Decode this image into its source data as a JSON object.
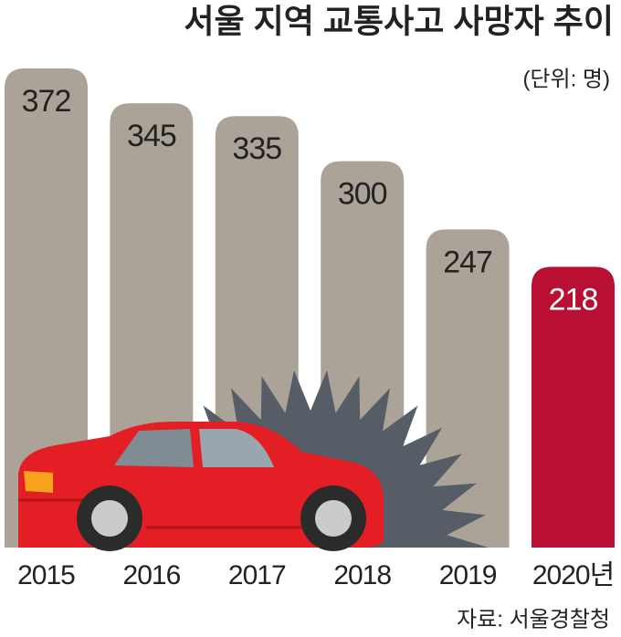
{
  "chart_data": {
    "type": "bar",
    "title": "서울 지역 교통사고 사망자 추이",
    "unit": "(단위: 명)",
    "source": "자료: 서울경찰청",
    "categories": [
      "2015",
      "2016",
      "2017",
      "2018",
      "2019",
      "2020년"
    ],
    "values": [
      372,
      345,
      335,
      300,
      247,
      218
    ],
    "colors": [
      "#aca398",
      "#aca398",
      "#aca398",
      "#aca398",
      "#aca398",
      "#b90f32"
    ],
    "value_label_colors": [
      "#222222",
      "#222222",
      "#222222",
      "#222222",
      "#222222",
      "#ffffff"
    ]
  }
}
